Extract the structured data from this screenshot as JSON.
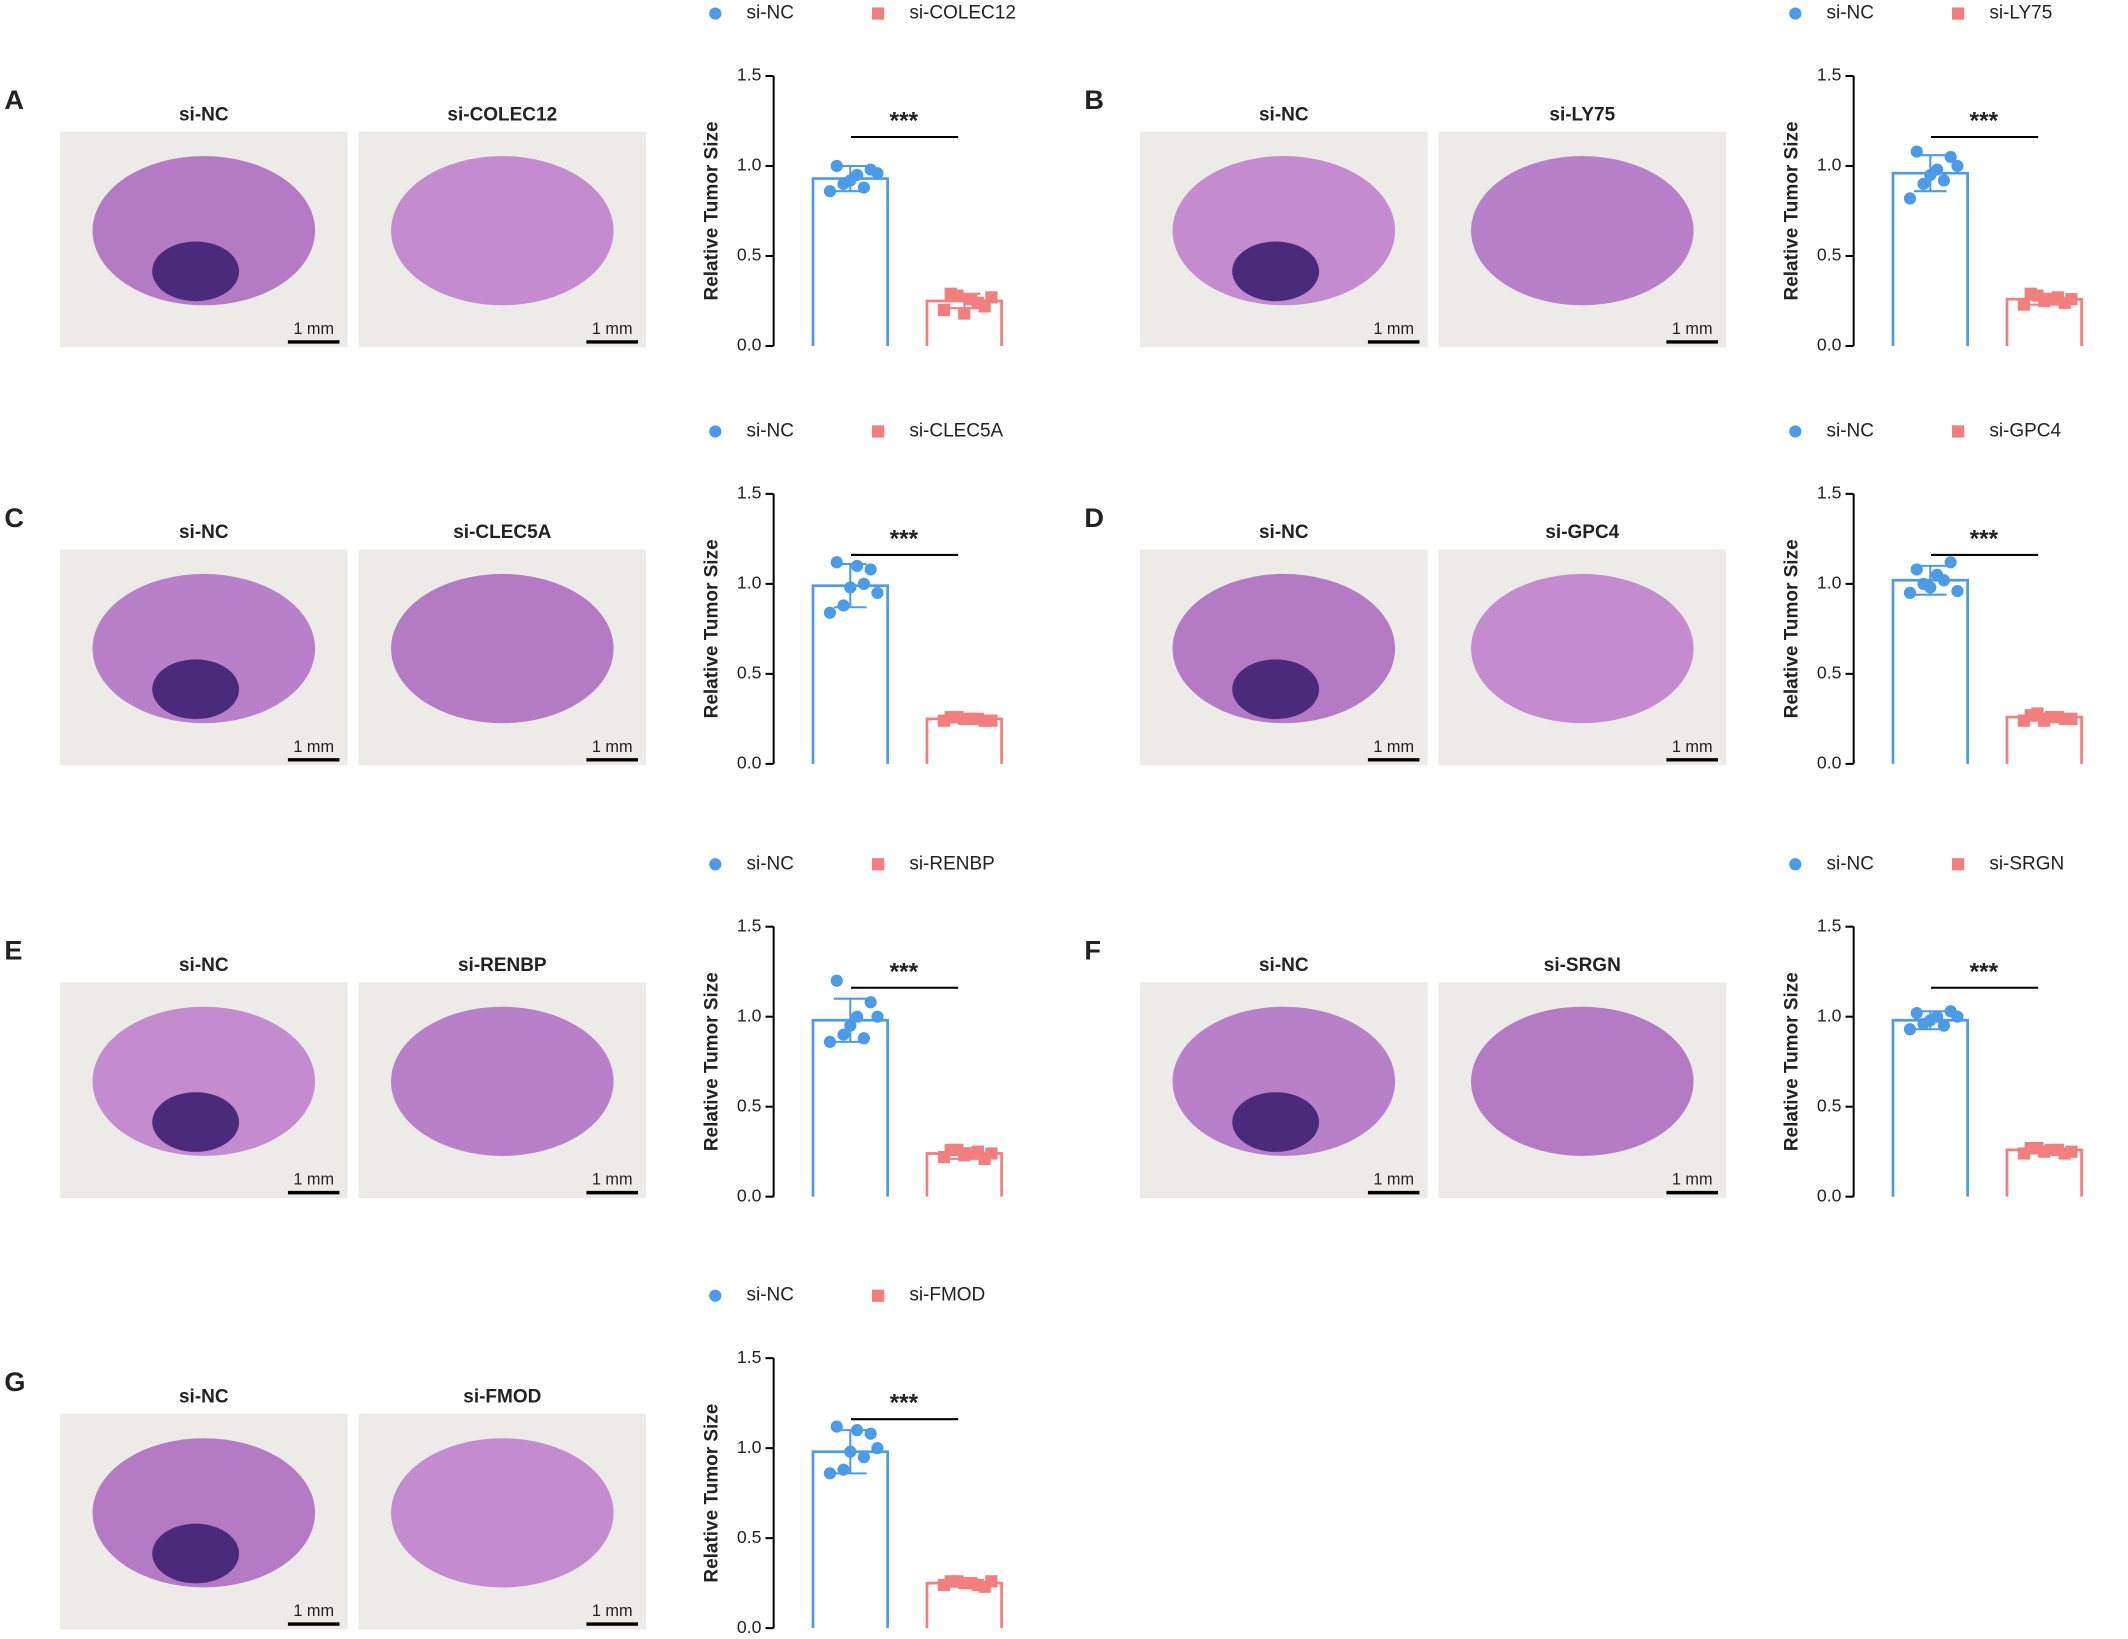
{
  "chart_data": [
    {
      "type": "bar",
      "panel": "A",
      "scale_bar": "1 mm",
      "ylabel": "Relative Tumor Size",
      "annotation": "***",
      "ylim": [
        0,
        1.5
      ],
      "yticks": [
        {
          "value": 0,
          "label": "0.0"
        },
        {
          "value": 0.5,
          "label": "0.5"
        },
        {
          "value": 1,
          "label": "1.0"
        },
        {
          "value": 1.5,
          "label": "1.5"
        }
      ],
      "series": [
        {
          "name": "si-NC",
          "color": "#4b9be8",
          "values": [
            0.93
          ],
          "errors": [
            0.07
          ],
          "points": [
            0.86,
            0.9,
            0.95,
            0.98,
            1.0,
            0.92,
            0.88,
            0.96
          ]
        },
        {
          "name": "si-COLEC12",
          "color": "#f27e7e",
          "values": [
            0.25
          ],
          "errors": [
            0.04
          ],
          "points": [
            0.2,
            0.28,
            0.26,
            0.22,
            0.29,
            0.18,
            0.24,
            0.27
          ]
        }
      ]
    },
    {
      "type": "bar",
      "panel": "B",
      "scale_bar": "1 mm",
      "ylabel": "Relative Tumor Size",
      "annotation": "***",
      "ylim": [
        0,
        1.5
      ],
      "yticks": [
        {
          "value": 0,
          "label": "0.0"
        },
        {
          "value": 0.5,
          "label": "0.5"
        },
        {
          "value": 1,
          "label": "1.0"
        },
        {
          "value": 1.5,
          "label": "1.5"
        }
      ],
      "series": [
        {
          "name": "si-NC",
          "color": "#4b9be8",
          "values": [
            0.96
          ],
          "errors": [
            0.1
          ],
          "points": [
            0.82,
            0.9,
            0.98,
            1.05,
            1.08,
            0.95,
            0.92,
            1.0
          ]
        },
        {
          "name": "si-LY75",
          "color": "#f27e7e",
          "values": [
            0.26
          ],
          "errors": [
            0.03
          ],
          "points": [
            0.23,
            0.28,
            0.26,
            0.24,
            0.29,
            0.25,
            0.27,
            0.26
          ]
        }
      ]
    },
    {
      "type": "bar",
      "panel": "C",
      "scale_bar": "1 mm",
      "ylabel": "Relative Tumor Size",
      "annotation": "***",
      "ylim": [
        0,
        1.5
      ],
      "yticks": [
        {
          "value": 0,
          "label": "0.0"
        },
        {
          "value": 0.5,
          "label": "0.5"
        },
        {
          "value": 1,
          "label": "1.0"
        },
        {
          "value": 1.5,
          "label": "1.5"
        }
      ],
      "series": [
        {
          "name": "si-NC",
          "color": "#4b9be8",
          "values": [
            0.99
          ],
          "errors": [
            0.12
          ],
          "points": [
            0.84,
            0.88,
            1.1,
            1.08,
            1.12,
            0.98,
            1.0,
            0.95
          ]
        },
        {
          "name": "si-CLEC5A",
          "color": "#f27e7e",
          "values": [
            0.25
          ],
          "errors": [
            0.02
          ],
          "points": [
            0.24,
            0.26,
            0.25,
            0.24,
            0.26,
            0.25,
            0.25,
            0.24
          ]
        }
      ]
    },
    {
      "type": "bar",
      "panel": "D",
      "scale_bar": "1 mm",
      "ylabel": "Relative Tumor Size",
      "annotation": "***",
      "ylim": [
        0,
        1.5
      ],
      "yticks": [
        {
          "value": 0,
          "label": "0.0"
        },
        {
          "value": 0.5,
          "label": "0.5"
        },
        {
          "value": 1,
          "label": "1.0"
        },
        {
          "value": 1.5,
          "label": "1.5"
        }
      ],
      "series": [
        {
          "name": "si-NC",
          "color": "#4b9be8",
          "values": [
            1.02
          ],
          "errors": [
            0.08
          ],
          "points": [
            0.95,
            1.0,
            1.05,
            1.12,
            1.08,
            0.98,
            1.02,
            0.96
          ]
        },
        {
          "name": "si-GPC4",
          "color": "#f27e7e",
          "values": [
            0.26
          ],
          "errors": [
            0.02
          ],
          "points": [
            0.24,
            0.28,
            0.26,
            0.25,
            0.27,
            0.24,
            0.26,
            0.25
          ]
        }
      ]
    },
    {
      "type": "bar",
      "panel": "E",
      "scale_bar": "1 mm",
      "ylabel": "Relative Tumor Size",
      "annotation": "***",
      "ylim": [
        0,
        1.5
      ],
      "yticks": [
        {
          "value": 0,
          "label": "0.0"
        },
        {
          "value": 0.5,
          "label": "0.5"
        },
        {
          "value": 1,
          "label": "1.0"
        },
        {
          "value": 1.5,
          "label": "1.5"
        }
      ],
      "series": [
        {
          "name": "si-NC",
          "color": "#4b9be8",
          "values": [
            0.98
          ],
          "errors": [
            0.12
          ],
          "points": [
            0.86,
            0.9,
            1.0,
            1.08,
            1.2,
            0.95,
            0.88,
            1.0
          ]
        },
        {
          "name": "si-RENBP",
          "color": "#f27e7e",
          "values": [
            0.24
          ],
          "errors": [
            0.03
          ],
          "points": [
            0.22,
            0.26,
            0.24,
            0.21,
            0.26,
            0.23,
            0.25,
            0.24
          ]
        }
      ]
    },
    {
      "type": "bar",
      "panel": "F",
      "scale_bar": "1 mm",
      "ylabel": "Relative Tumor Size",
      "annotation": "***",
      "ylim": [
        0,
        1.5
      ],
      "yticks": [
        {
          "value": 0,
          "label": "0.0"
        },
        {
          "value": 0.5,
          "label": "0.5"
        },
        {
          "value": 1,
          "label": "1.0"
        },
        {
          "value": 1.5,
          "label": "1.5"
        }
      ],
      "series": [
        {
          "name": "si-NC",
          "color": "#4b9be8",
          "values": [
            0.98
          ],
          "errors": [
            0.05
          ],
          "points": [
            0.93,
            0.96,
            1.0,
            1.03,
            1.02,
            0.98,
            0.95,
            1.0
          ]
        },
        {
          "name": "si-SRGN",
          "color": "#f27e7e",
          "values": [
            0.26
          ],
          "errors": [
            0.02
          ],
          "points": [
            0.24,
            0.27,
            0.26,
            0.24,
            0.27,
            0.25,
            0.26,
            0.25
          ]
        }
      ]
    },
    {
      "type": "bar",
      "panel": "G",
      "scale_bar": "1 mm",
      "ylabel": "Relative Tumor Size",
      "annotation": "***",
      "ylim": [
        0,
        1.5
      ],
      "yticks": [
        {
          "value": 0,
          "label": "0.0"
        },
        {
          "value": 0.5,
          "label": "0.5"
        },
        {
          "value": 1,
          "label": "1.0"
        },
        {
          "value": 1.5,
          "label": "1.5"
        }
      ],
      "series": [
        {
          "name": "si-NC",
          "color": "#4b9be8",
          "values": [
            0.98
          ],
          "errors": [
            0.12
          ],
          "points": [
            0.86,
            0.88,
            1.1,
            1.08,
            1.12,
            0.98,
            0.95,
            1.0
          ]
        },
        {
          "name": "si-FMOD",
          "color": "#f27e7e",
          "values": [
            0.25
          ],
          "errors": [
            0.02
          ],
          "points": [
            0.24,
            0.26,
            0.25,
            0.23,
            0.26,
            0.25,
            0.24,
            0.26
          ]
        }
      ]
    }
  ]
}
